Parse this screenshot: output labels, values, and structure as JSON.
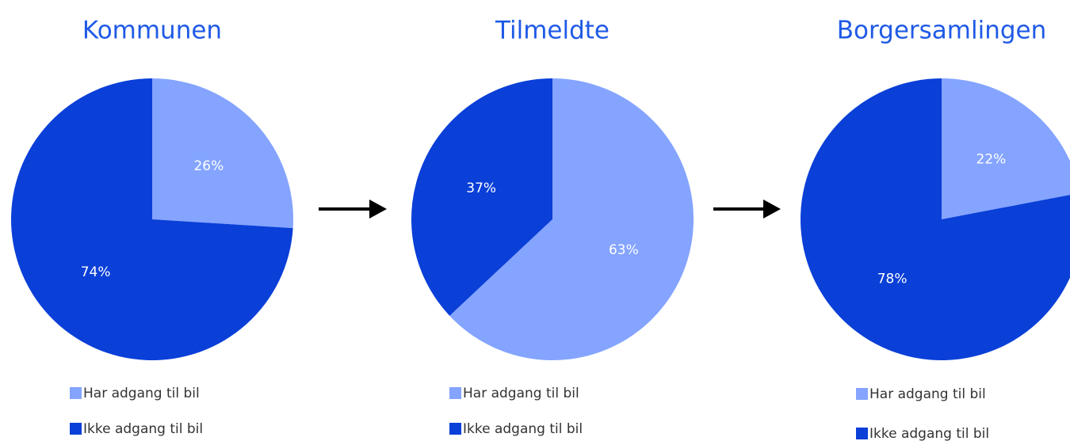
{
  "chart_data": [
    {
      "type": "pie",
      "title": "Kommunen",
      "categories": [
        "Har adgang til bil",
        "Ikke adgang til bil"
      ],
      "values": [
        26,
        74
      ],
      "value_labels": [
        "26%",
        "74%"
      ],
      "colors": [
        "#84a4ff",
        "#0a3fd8"
      ]
    },
    {
      "type": "pie",
      "title": "Tilmeldte",
      "categories": [
        "Har adgang til bil",
        "Ikke adgang til bil"
      ],
      "values": [
        63,
        37
      ],
      "value_labels": [
        "63%",
        "37%"
      ],
      "colors": [
        "#84a4ff",
        "#0a3fd8"
      ]
    },
    {
      "type": "pie",
      "title": "Borgersamlingen",
      "categories": [
        "Har adgang til bil",
        "Ikke adgang til bil"
      ],
      "values": [
        22,
        78
      ],
      "value_labels": [
        "22%",
        "78%"
      ],
      "colors": [
        "#84a4ff",
        "#0a3fd8"
      ]
    }
  ]
}
